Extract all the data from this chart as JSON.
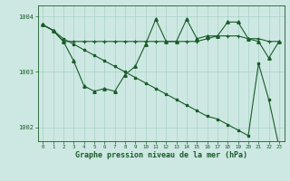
{
  "title": "Graphe pression niveau de la mer (hPa)",
  "bg_color": "#cde8e2",
  "line_color": "#1a5c2a",
  "grid_color": "#aad0c8",
  "x_values": [
    0,
    1,
    2,
    3,
    4,
    5,
    6,
    7,
    8,
    9,
    10,
    11,
    12,
    13,
    14,
    15,
    16,
    17,
    18,
    19,
    20,
    21,
    22,
    23
  ],
  "series_flat": [
    1003.85,
    1003.75,
    1003.55,
    1003.55,
    1003.55,
    1003.55,
    1003.55,
    1003.55,
    1003.55,
    1003.55,
    1003.55,
    1003.55,
    1003.55,
    1003.55,
    1003.55,
    1003.55,
    1003.6,
    1003.65,
    1003.65,
    1003.65,
    1003.6,
    1003.6,
    1003.55,
    1003.55
  ],
  "series_wavy": [
    1003.85,
    1003.75,
    1003.55,
    1003.2,
    1002.75,
    1002.65,
    1002.7,
    1002.65,
    1002.95,
    1003.1,
    1003.5,
    1003.95,
    1003.55,
    1003.55,
    1003.95,
    1003.6,
    1003.65,
    1003.65,
    1003.9,
    1003.9,
    1003.6,
    1003.55,
    1003.25,
    1003.55
  ],
  "series_diagonal": [
    1003.85,
    1003.75,
    1003.6,
    1003.5,
    1003.4,
    1003.3,
    1003.2,
    1003.1,
    1003.0,
    1002.9,
    1002.8,
    1002.7,
    1002.6,
    1002.5,
    1002.4,
    1002.3,
    1002.2,
    1002.15,
    1002.05,
    1001.95,
    1001.85,
    1003.15,
    1002.5,
    1001.65
  ],
  "ylim_min": 1001.75,
  "ylim_max": 1004.2,
  "yticks": [
    1002,
    1003,
    1004
  ]
}
